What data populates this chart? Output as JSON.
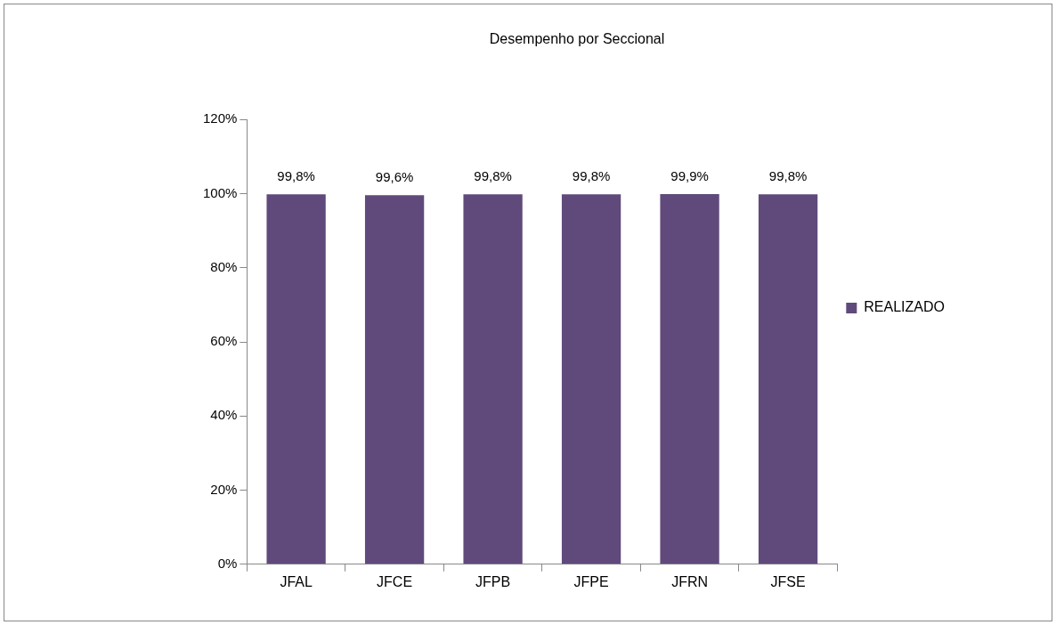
{
  "chart_data": {
    "type": "bar",
    "title": "Desempenho por Seccional",
    "categories": [
      "JFAL",
      "JFCE",
      "JFPB",
      "JFPE",
      "JFRN",
      "JFSE"
    ],
    "series": [
      {
        "name": "REALIZADO",
        "color": "#604a7b",
        "values": [
          99.8,
          99.6,
          99.8,
          99.8,
          99.9,
          99.8
        ],
        "value_labels": [
          "99,8%",
          "99,6%",
          "99,8%",
          "99,8%",
          "99,9%",
          "99,8%"
        ]
      }
    ],
    "ylim": [
      0,
      120
    ],
    "yticks": [
      {
        "value": 0,
        "label": "0%"
      },
      {
        "value": 20,
        "label": "20%"
      },
      {
        "value": 40,
        "label": "40%"
      },
      {
        "value": 60,
        "label": "60%"
      },
      {
        "value": 80,
        "label": "80%"
      },
      {
        "value": 100,
        "label": "100%"
      },
      {
        "value": 120,
        "label": "120%"
      }
    ],
    "grid": false,
    "legend": "right"
  }
}
